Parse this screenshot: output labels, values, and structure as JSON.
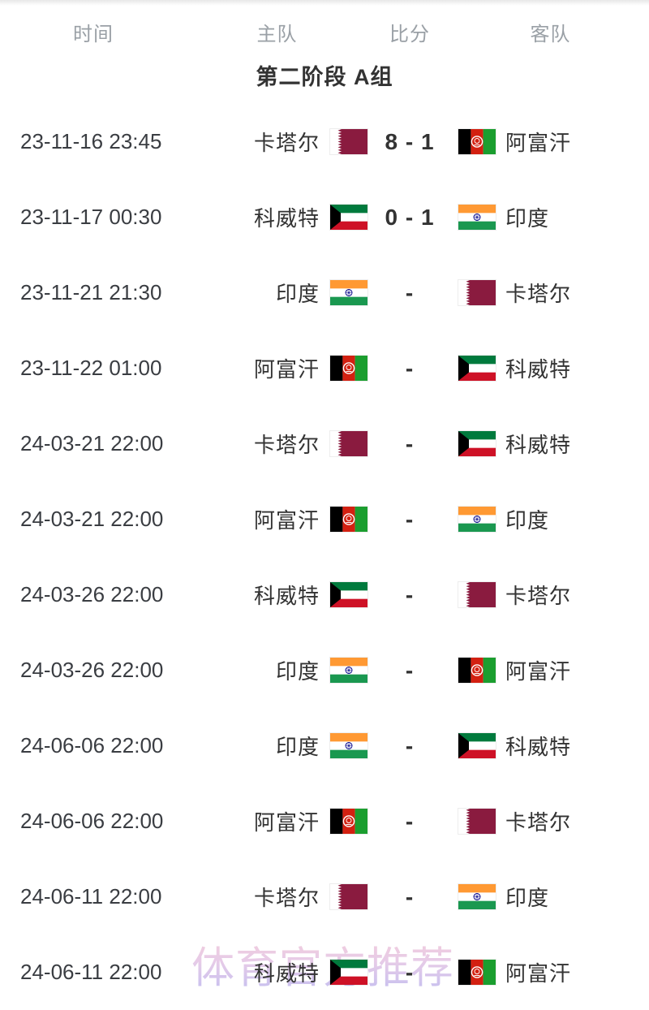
{
  "header": {
    "time": "时间",
    "home": "主队",
    "score": "比分",
    "away": "客队"
  },
  "section": {
    "title": "第二阶段 A组"
  },
  "matches": [
    {
      "time": "23-11-16 23:45",
      "home": "卡塔尔",
      "home_flag": "qatar",
      "score": "8 - 1",
      "away": "阿富汗",
      "away_flag": "afghanistan"
    },
    {
      "time": "23-11-17 00:30",
      "home": "科威特",
      "home_flag": "kuwait",
      "score": "0 - 1",
      "away": "印度",
      "away_flag": "india"
    },
    {
      "time": "23-11-21 21:30",
      "home": "印度",
      "home_flag": "india",
      "score": "-",
      "away": "卡塔尔",
      "away_flag": "qatar"
    },
    {
      "time": "23-11-22 01:00",
      "home": "阿富汗",
      "home_flag": "afghanistan",
      "score": "-",
      "away": "科威特",
      "away_flag": "kuwait"
    },
    {
      "time": "24-03-21 22:00",
      "home": "卡塔尔",
      "home_flag": "qatar",
      "score": "-",
      "away": "科威特",
      "away_flag": "kuwait"
    },
    {
      "time": "24-03-21 22:00",
      "home": "阿富汗",
      "home_flag": "afghanistan",
      "score": "-",
      "away": "印度",
      "away_flag": "india"
    },
    {
      "time": "24-03-26 22:00",
      "home": "科威特",
      "home_flag": "kuwait",
      "score": "-",
      "away": "卡塔尔",
      "away_flag": "qatar"
    },
    {
      "time": "24-03-26 22:00",
      "home": "印度",
      "home_flag": "india",
      "score": "-",
      "away": "阿富汗",
      "away_flag": "afghanistan"
    },
    {
      "time": "24-06-06 22:00",
      "home": "印度",
      "home_flag": "india",
      "score": "-",
      "away": "科威特",
      "away_flag": "kuwait"
    },
    {
      "time": "24-06-06 22:00",
      "home": "阿富汗",
      "home_flag": "afghanistan",
      "score": "-",
      "away": "卡塔尔",
      "away_flag": "qatar"
    },
    {
      "time": "24-06-11 22:00",
      "home": "卡塔尔",
      "home_flag": "qatar",
      "score": "-",
      "away": "印度",
      "away_flag": "india"
    },
    {
      "time": "24-06-11 22:00",
      "home": "科威特",
      "home_flag": "kuwait",
      "score": "-",
      "away": "阿富汗",
      "away_flag": "afghanistan"
    }
  ],
  "watermark": {
    "text": "体育官方推荐"
  },
  "colors": {
    "qatar_maroon": "#8a1b3f",
    "afghan_black": "#000000",
    "afghan_red": "#d32011",
    "afghan_green": "#1b9e2f",
    "kuwait_green": "#007a3d",
    "kuwait_red": "#ce1126",
    "kuwait_black": "#000000",
    "india_saffron": "#ff9933",
    "india_green": "#1a9850",
    "india_navy": "#000088",
    "text_dark": "#333333",
    "text_gray": "#9aa0a6",
    "watermark_top": "#f4c6d4",
    "watermark_bottom": "#b7b3ef"
  }
}
